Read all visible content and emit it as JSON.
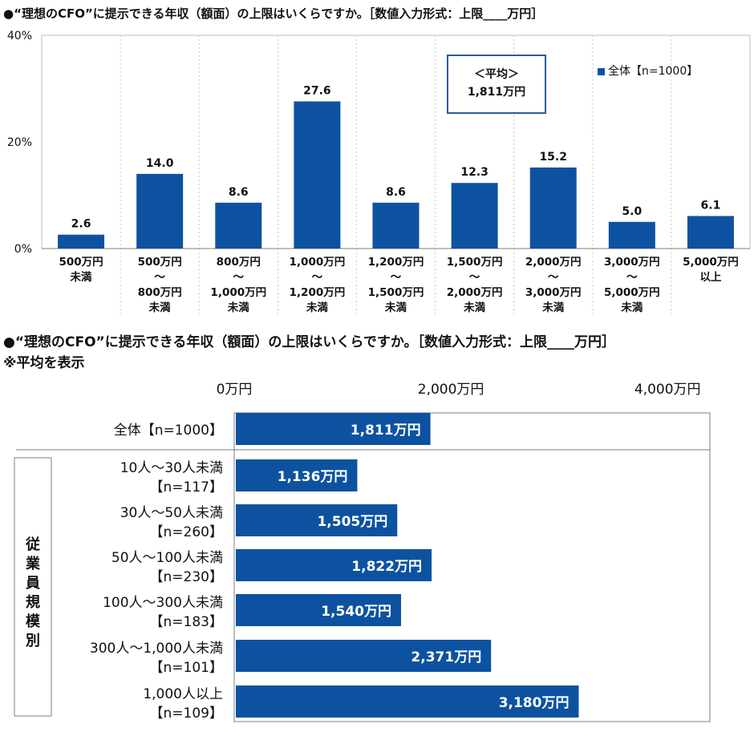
{
  "chart_data": [
    {
      "type": "bar",
      "title": "●“理想のCFO”に提示できる年収（額面）の上限はいくらですか。［数値入力形式：上限____万円］",
      "categories": [
        [
          "500万円",
          "未満"
        ],
        [
          "500万円",
          "〜",
          "800万円",
          "未満"
        ],
        [
          "800万円",
          "〜",
          "1,000万円",
          "未満"
        ],
        [
          "1,000万円",
          "〜",
          "1,200万円",
          "未満"
        ],
        [
          "1,200万円",
          "〜",
          "1,500万円",
          "未満"
        ],
        [
          "1,500万円",
          "〜",
          "2,000万円",
          "未満"
        ],
        [
          "2,000万円",
          "〜",
          "3,000万円",
          "未満"
        ],
        [
          "3,000万円",
          "〜",
          "5,000万円",
          "未満"
        ],
        [
          "5,000万円",
          "以上"
        ]
      ],
      "series": [
        {
          "name": "全体【n=1000】",
          "values": [
            2.6,
            14.0,
            8.6,
            27.6,
            8.6,
            12.3,
            15.2,
            5.0,
            6.1
          ]
        }
      ],
      "value_labels": [
        "2.6",
        "14.0",
        "8.6",
        "27.6",
        "8.6",
        "12.3",
        "15.2",
        "5.0",
        "6.1"
      ],
      "yticks": [
        "40%",
        "20%",
        "0%"
      ],
      "ytick_values": [
        40,
        20,
        0
      ],
      "ylim": [
        0,
        40
      ],
      "grid": false,
      "legend": "top-right",
      "annotation": [
        "＜平均＞",
        "1,811万円"
      ],
      "bar_color": "#0d52a1"
    },
    {
      "type": "bar",
      "orientation": "horizontal",
      "title": "●“理想のCFO”に提示できる年収（額面）の上限はいくらですか。［数値入力形式：上限____万円］",
      "subtitle": "※平均を表示",
      "group_label": "従業員規模別",
      "categories": [
        [
          "全体【n=1000】"
        ],
        [
          "10人〜30人未満",
          "【n=117】"
        ],
        [
          "30人〜50人未満",
          "【n=260】"
        ],
        [
          "50人〜100人未満",
          "【n=230】"
        ],
        [
          "100人〜300人未満",
          "【n=183】"
        ],
        [
          "300人〜1,000人未満",
          "【n=101】"
        ],
        [
          "1,000人以上",
          "【n=109】"
        ]
      ],
      "values": [
        1811,
        1136,
        1505,
        1822,
        1540,
        2371,
        3180
      ],
      "value_labels": [
        "1,811万円",
        "1,136万円",
        "1,505万円",
        "1,822万円",
        "1,540万円",
        "2,371万円",
        "3,180万円"
      ],
      "xticks": [
        "0万円",
        "2,000万円",
        "4,000万円"
      ],
      "xtick_values": [
        0,
        2000,
        4000
      ],
      "xlim": [
        0,
        4000
      ],
      "grid": false,
      "bar_color": "#0d52a1"
    }
  ]
}
